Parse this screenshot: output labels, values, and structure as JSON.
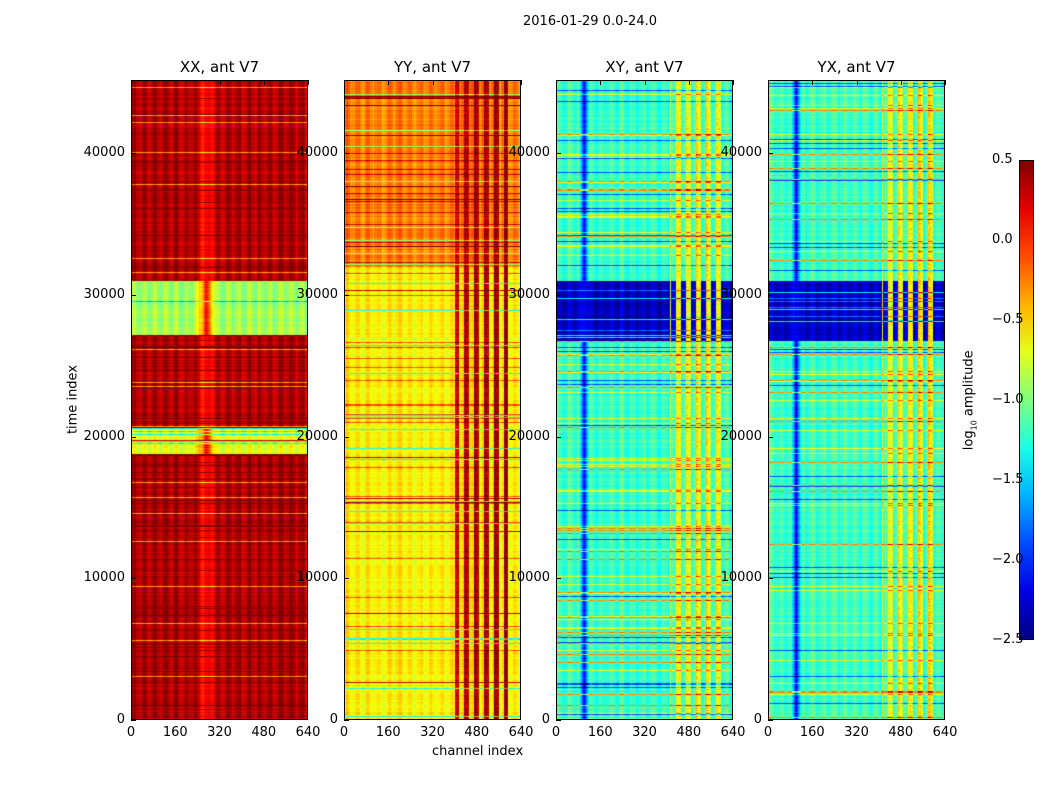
{
  "chart_data": {
    "type": "heatmap",
    "title": "2016-01-29 0.0-24.0",
    "xlabel": "channel index",
    "ylabel": "time index",
    "xlim": [
      0,
      640
    ],
    "ylim": [
      0,
      45150
    ],
    "xticks": [
      "0",
      "160",
      "320",
      "480",
      "640"
    ],
    "yticks": [
      "0",
      "10000",
      "20000",
      "30000",
      "40000"
    ],
    "colorbar": {
      "label_prefix": "log",
      "label_sub": "10",
      "label_suffix": " amplitude",
      "range": [
        -2.5,
        0.5
      ],
      "ticks": [
        "0.5",
        "0.0",
        "−0.5",
        "−1.0",
        "−1.5",
        "−2.0",
        "−2.5"
      ],
      "colormap": "jet"
    },
    "panels": [
      {
        "title": "XX, ant V7",
        "base": 0.35,
        "stripe": {
          "channels": [
            230,
            310
          ],
          "value": 0.05
        },
        "bands": [
          {
            "t": [
              27200,
              31000
            ],
            "value": -0.9
          },
          {
            "t": [
              18800,
              20600
            ],
            "value": -0.7
          }
        ],
        "patch": null,
        "seed": 3
      },
      {
        "title": "YY, ant V7",
        "base": -0.6,
        "stripe": null,
        "bands": [
          {
            "t": [
              32000,
              45150
            ],
            "value": -0.25
          }
        ],
        "patch": {
          "channels": [
            400,
            590
          ],
          "value": 0.4
        },
        "seed": 7
      },
      {
        "title": "XY, ant V7",
        "base": -1.2,
        "stripe": {
          "channels": [
            80,
            120
          ],
          "value": -2.1
        },
        "bands": [
          {
            "t": [
              26800,
              31000
            ],
            "value": -2.3
          }
        ],
        "patch": {
          "channels": [
            410,
            600
          ],
          "value": -0.6
        },
        "seed": 11
      },
      {
        "title": "YX, ant V7",
        "base": -1.2,
        "stripe": {
          "channels": [
            80,
            120
          ],
          "value": -2.1
        },
        "bands": [
          {
            "t": [
              26800,
              31000
            ],
            "value": -2.3
          }
        ],
        "patch": {
          "channels": [
            410,
            600
          ],
          "value": -0.6
        },
        "seed": 13
      }
    ]
  }
}
